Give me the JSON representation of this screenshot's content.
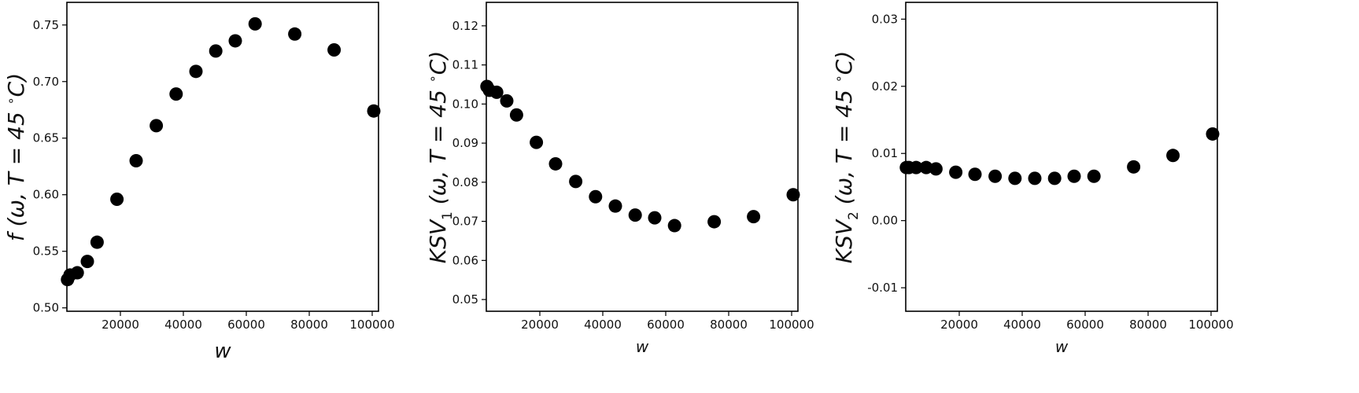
{
  "chart_data": [
    {
      "type": "scatter",
      "xlabel": "w",
      "ylabel_html": "f (ω, T = 45 °C)",
      "ylabel_parts": [
        "f (ω, T = 45 ",
        "∘",
        "C)"
      ],
      "xlim": [
        3000,
        102000
      ],
      "ylim": [
        0.497,
        0.77
      ],
      "xticks": [
        20000,
        40000,
        60000,
        80000,
        100000
      ],
      "xtick_labels": [
        "20000",
        "40000",
        "60000",
        "80000",
        "100000"
      ],
      "yticks": [
        0.5,
        0.55,
        0.6,
        0.65,
        0.7,
        0.75
      ],
      "ytick_labels": [
        "0.50",
        "0.55",
        "0.60",
        "0.65",
        "0.70",
        "0.75"
      ],
      "marker_color": "#000000",
      "points": [
        {
          "x": 3200,
          "y": 0.525
        },
        {
          "x": 4000,
          "y": 0.529
        },
        {
          "x": 6300,
          "y": 0.531
        },
        {
          "x": 9500,
          "y": 0.541
        },
        {
          "x": 12600,
          "y": 0.558
        },
        {
          "x": 18900,
          "y": 0.596
        },
        {
          "x": 25000,
          "y": 0.63
        },
        {
          "x": 31400,
          "y": 0.661
        },
        {
          "x": 37700,
          "y": 0.689
        },
        {
          "x": 44000,
          "y": 0.709
        },
        {
          "x": 50300,
          "y": 0.727
        },
        {
          "x": 56500,
          "y": 0.736
        },
        {
          "x": 62800,
          "y": 0.751
        },
        {
          "x": 75400,
          "y": 0.742
        },
        {
          "x": 87900,
          "y": 0.728
        },
        {
          "x": 100500,
          "y": 0.674
        }
      ]
    },
    {
      "type": "scatter",
      "xlabel": "w",
      "ylabel_parts": [
        "KSV",
        "1",
        " (ω, T = 45 ",
        "∘",
        "C)"
      ],
      "xlim": [
        3000,
        102000
      ],
      "ylim": [
        0.047,
        0.126
      ],
      "xticks": [
        20000,
        40000,
        60000,
        80000,
        100000
      ],
      "xtick_labels": [
        "20000",
        "40000",
        "60000",
        "80000",
        "100000"
      ],
      "yticks": [
        0.05,
        0.06,
        0.07,
        0.08,
        0.09,
        0.1,
        0.11,
        0.12
      ],
      "ytick_labels": [
        "0.05",
        "0.06",
        "0.07",
        "0.08",
        "0.09",
        "0.10",
        "0.11",
        "0.12"
      ],
      "marker_color": "#000000",
      "points": [
        {
          "x": 3200,
          "y": 0.1045
        },
        {
          "x": 4000,
          "y": 0.1035
        },
        {
          "x": 6300,
          "y": 0.103
        },
        {
          "x": 9500,
          "y": 0.1008
        },
        {
          "x": 12600,
          "y": 0.0972
        },
        {
          "x": 18900,
          "y": 0.0902
        },
        {
          "x": 25000,
          "y": 0.0847
        },
        {
          "x": 31400,
          "y": 0.0802
        },
        {
          "x": 37700,
          "y": 0.0763
        },
        {
          "x": 44000,
          "y": 0.0739
        },
        {
          "x": 50300,
          "y": 0.0716
        },
        {
          "x": 56500,
          "y": 0.0709
        },
        {
          "x": 62800,
          "y": 0.0689
        },
        {
          "x": 75400,
          "y": 0.0699
        },
        {
          "x": 87900,
          "y": 0.0712
        },
        {
          "x": 100500,
          "y": 0.0768
        }
      ]
    },
    {
      "type": "scatter",
      "xlabel": "w",
      "ylabel_parts": [
        "KSV",
        "2",
        " (ω, T = 45 ",
        "∘",
        "C)"
      ],
      "xlim": [
        3000,
        102000
      ],
      "ylim": [
        -0.0135,
        0.0325
      ],
      "xticks": [
        20000,
        40000,
        60000,
        80000,
        100000
      ],
      "xtick_labels": [
        "20000",
        "40000",
        "60000",
        "80000",
        "100000"
      ],
      "yticks": [
        -0.01,
        0.0,
        0.01,
        0.02,
        0.03
      ],
      "ytick_labels": [
        "-0.01",
        "0.00",
        "0.01",
        "0.02",
        "0.03"
      ],
      "marker_color": "#000000",
      "points": [
        {
          "x": 3200,
          "y": 0.0079
        },
        {
          "x": 4000,
          "y": 0.0079
        },
        {
          "x": 6300,
          "y": 0.0079
        },
        {
          "x": 9500,
          "y": 0.0079
        },
        {
          "x": 12600,
          "y": 0.0077
        },
        {
          "x": 18900,
          "y": 0.0072
        },
        {
          "x": 25000,
          "y": 0.0069
        },
        {
          "x": 31400,
          "y": 0.0066
        },
        {
          "x": 37700,
          "y": 0.0063
        },
        {
          "x": 44000,
          "y": 0.0063
        },
        {
          "x": 50300,
          "y": 0.0063
        },
        {
          "x": 56500,
          "y": 0.0066
        },
        {
          "x": 62800,
          "y": 0.0066
        },
        {
          "x": 75400,
          "y": 0.008
        },
        {
          "x": 87900,
          "y": 0.0097
        },
        {
          "x": 100500,
          "y": 0.0129
        }
      ]
    }
  ]
}
